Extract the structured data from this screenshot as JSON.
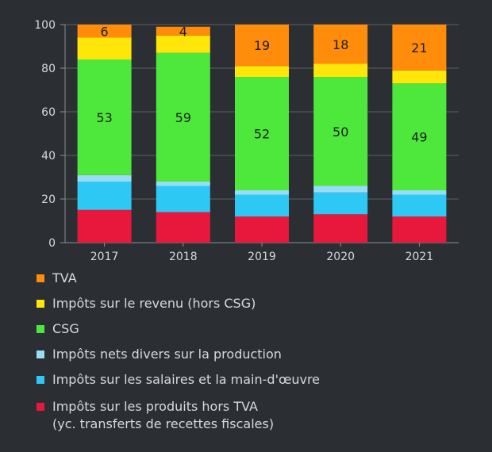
{
  "chart_data": {
    "type": "bar",
    "stacked": true,
    "categories": [
      "2017",
      "2018",
      "2019",
      "2020",
      "2021"
    ],
    "ylim": [
      0,
      100
    ],
    "yticks": [
      0,
      20,
      40,
      60,
      80,
      100
    ],
    "grid": true,
    "legend_position": "bottom",
    "series": [
      {
        "name": "Impôts sur les produits hors TVA (yc. transferts de recettes fiscales)",
        "color": "#e8183c",
        "values": [
          15,
          14,
          12,
          13,
          12
        ]
      },
      {
        "name": "Impôts sur les salaires et la main-d'œuvre",
        "color": "#2ec8f5",
        "values": [
          13,
          12,
          10,
          10,
          10
        ]
      },
      {
        "name": "Impôts nets divers sur la production",
        "color": "#98dcf6",
        "values": [
          3,
          2,
          2,
          3,
          2
        ]
      },
      {
        "name": "CSG",
        "color": "#4ee83c",
        "values": [
          53,
          59,
          52,
          50,
          49
        ]
      },
      {
        "name": "Impôts sur le revenu (hors CSG)",
        "color": "#ffe60a",
        "values": [
          10,
          8,
          5,
          6,
          6
        ]
      },
      {
        "name": "TVA",
        "color": "#ff8c0a",
        "values": [
          6,
          4,
          19,
          18,
          21
        ]
      }
    ],
    "data_labels": [
      {
        "category": "2017",
        "series": "TVA",
        "text": "6"
      },
      {
        "category": "2018",
        "series": "TVA",
        "text": "4"
      },
      {
        "category": "2019",
        "series": "TVA",
        "text": "19"
      },
      {
        "category": "2020",
        "series": "TVA",
        "text": "18"
      },
      {
        "category": "2021",
        "series": "TVA",
        "text": "21"
      },
      {
        "category": "2017",
        "series": "CSG",
        "text": "53"
      },
      {
        "category": "2018",
        "series": "CSG",
        "text": "59"
      },
      {
        "category": "2019",
        "series": "CSG",
        "text": "52"
      },
      {
        "category": "2020",
        "series": "CSG",
        "text": "50"
      },
      {
        "category": "2021",
        "series": "CSG",
        "text": "49"
      }
    ]
  },
  "legend": {
    "items": [
      {
        "lines": [
          "TVA"
        ],
        "color": "#ff8c0a"
      },
      {
        "lines": [
          "Impôts sur le revenu (hors CSG)"
        ],
        "color": "#ffe60a"
      },
      {
        "lines": [
          "CSG"
        ],
        "color": "#4ee83c"
      },
      {
        "lines": [
          "Impôts nets divers sur la production"
        ],
        "color": "#98dcf6"
      },
      {
        "lines": [
          "Impôts sur les salaires et la main-d'œuvre"
        ],
        "color": "#2ec8f5"
      },
      {
        "lines": [
          "Impôts sur les produits hors TVA",
          "(yc. transferts de recettes fiscales)"
        ],
        "color": "#e8183c"
      }
    ]
  }
}
